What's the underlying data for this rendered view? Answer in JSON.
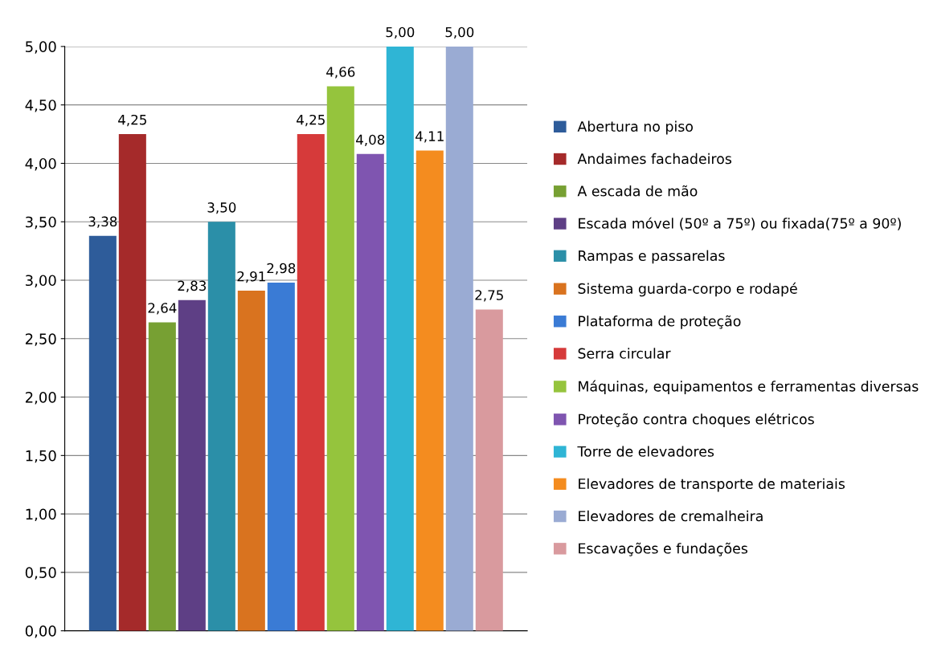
{
  "chart_data": {
    "type": "bar",
    "categories": [
      null
    ],
    "series": [
      {
        "name": "Abertura no piso",
        "color": "#2e5c9a",
        "values": [
          3.38
        ],
        "value_labels": [
          "3,38"
        ]
      },
      {
        "name": "Andaimes fachadeiros",
        "color": "#a52a2a",
        "values": [
          4.25
        ],
        "value_labels": [
          "4,25"
        ]
      },
      {
        "name": "A escada de mão",
        "color": "#77a033",
        "values": [
          2.64
        ],
        "value_labels": [
          "2,64"
        ]
      },
      {
        "name": "Escada móvel (50º a 75º) ou fixada(75º a 90º)",
        "color": "#5e3f85",
        "values": [
          2.83
        ],
        "value_labels": [
          "2,83"
        ]
      },
      {
        "name": "Rampas e passarelas",
        "color": "#2b8fa8",
        "values": [
          3.5
        ],
        "value_labels": [
          "3,50"
        ]
      },
      {
        "name": "Sistema guarda-corpo e rodapé",
        "color": "#d9731f",
        "values": [
          2.91
        ],
        "value_labels": [
          "2,91"
        ]
      },
      {
        "name": "Plataforma de proteção",
        "color": "#3a7bd5",
        "values": [
          2.98
        ],
        "value_labels": [
          "2,98"
        ]
      },
      {
        "name": "Serra circular",
        "color": "#d63a3a",
        "values": [
          4.25
        ],
        "value_labels": [
          "4,25"
        ]
      },
      {
        "name": "Máquinas, equipamentos e ferramentas diversas",
        "color": "#95c43d",
        "values": [
          4.66
        ],
        "value_labels": [
          "4,66"
        ]
      },
      {
        "name": "Proteção contra choques elétricos",
        "color": "#7f55b0",
        "values": [
          4.08
        ],
        "value_labels": [
          "4,08"
        ]
      },
      {
        "name": "Torre de elevadores",
        "color": "#2fb5d5",
        "values": [
          5.0
        ],
        "value_labels": [
          "5,00"
        ]
      },
      {
        "name": "Elevadores de transporte de materiais",
        "color": "#f48c1f",
        "values": [
          4.11
        ],
        "value_labels": [
          "4,11"
        ]
      },
      {
        "name": "Elevadores de cremalheira",
        "color": "#9aabd3",
        "values": [
          5.0
        ],
        "value_labels": [
          "5,00"
        ]
      },
      {
        "name": "Escavações e fundações",
        "color": "#d99a9e",
        "values": [
          2.75
        ],
        "value_labels": [
          "2,75"
        ]
      }
    ],
    "ylim": [
      0,
      5
    ],
    "yticks": [
      {
        "value": 0,
        "label": "0,00"
      },
      {
        "value": 0.5,
        "label": "0,50"
      },
      {
        "value": 1,
        "label": "1,00"
      },
      {
        "value": 1.5,
        "label": "1,50"
      },
      {
        "value": 2,
        "label": "2,00"
      },
      {
        "value": 2.5,
        "label": "2,50"
      },
      {
        "value": 3,
        "label": "3,00"
      },
      {
        "value": 3.5,
        "label": "3,50"
      },
      {
        "value": 4,
        "label": "4,00"
      },
      {
        "value": 4.5,
        "label": "4,50"
      },
      {
        "value": 5,
        "label": "5,00"
      }
    ],
    "grid": "y",
    "legend": "right"
  }
}
